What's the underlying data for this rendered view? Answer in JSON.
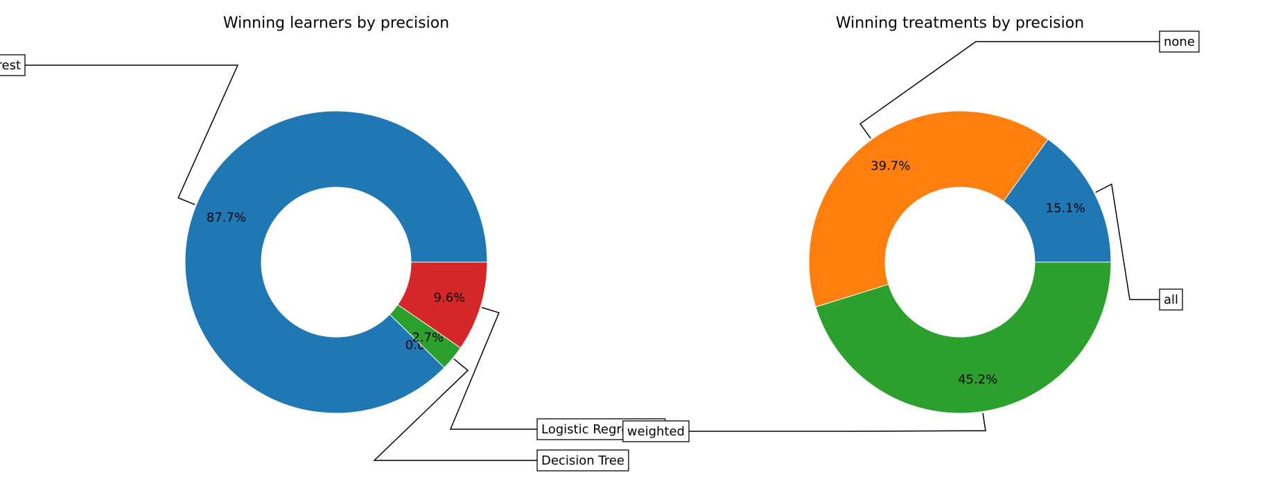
{
  "chart_data": [
    {
      "type": "pie",
      "style": "donut",
      "title": "Winning learners by precision",
      "colors": [
        "#1f77b4",
        "#ff7f0e",
        "#2ca02c",
        "#d62728"
      ],
      "slices": [
        {
          "label": "Random Forest",
          "value": 87.7,
          "pct_label": "87.7%",
          "color": "#1f77b4"
        },
        {
          "label": "",
          "value": 0.0,
          "pct_label": "0.0%",
          "color": "#ff7f0e"
        },
        {
          "label": "Decision Tree",
          "value": 2.7,
          "pct_label": "2.7%",
          "color": "#2ca02c"
        },
        {
          "label": "Logistic Regression",
          "value": 9.6,
          "pct_label": "9.6%",
          "color": "#d62728"
        }
      ]
    },
    {
      "type": "pie",
      "style": "donut",
      "title": "Winning treatments by precision",
      "colors": [
        "#1f77b4",
        "#ff7f0e",
        "#2ca02c"
      ],
      "slices": [
        {
          "label": "all",
          "value": 15.1,
          "pct_label": "15.1%",
          "color": "#1f77b4"
        },
        {
          "label": "none",
          "value": 39.7,
          "pct_label": "39.7%",
          "color": "#ff7f0e"
        },
        {
          "label": "weighted",
          "value": 45.2,
          "pct_label": "45.2%",
          "color": "#2ca02c"
        }
      ]
    }
  ]
}
